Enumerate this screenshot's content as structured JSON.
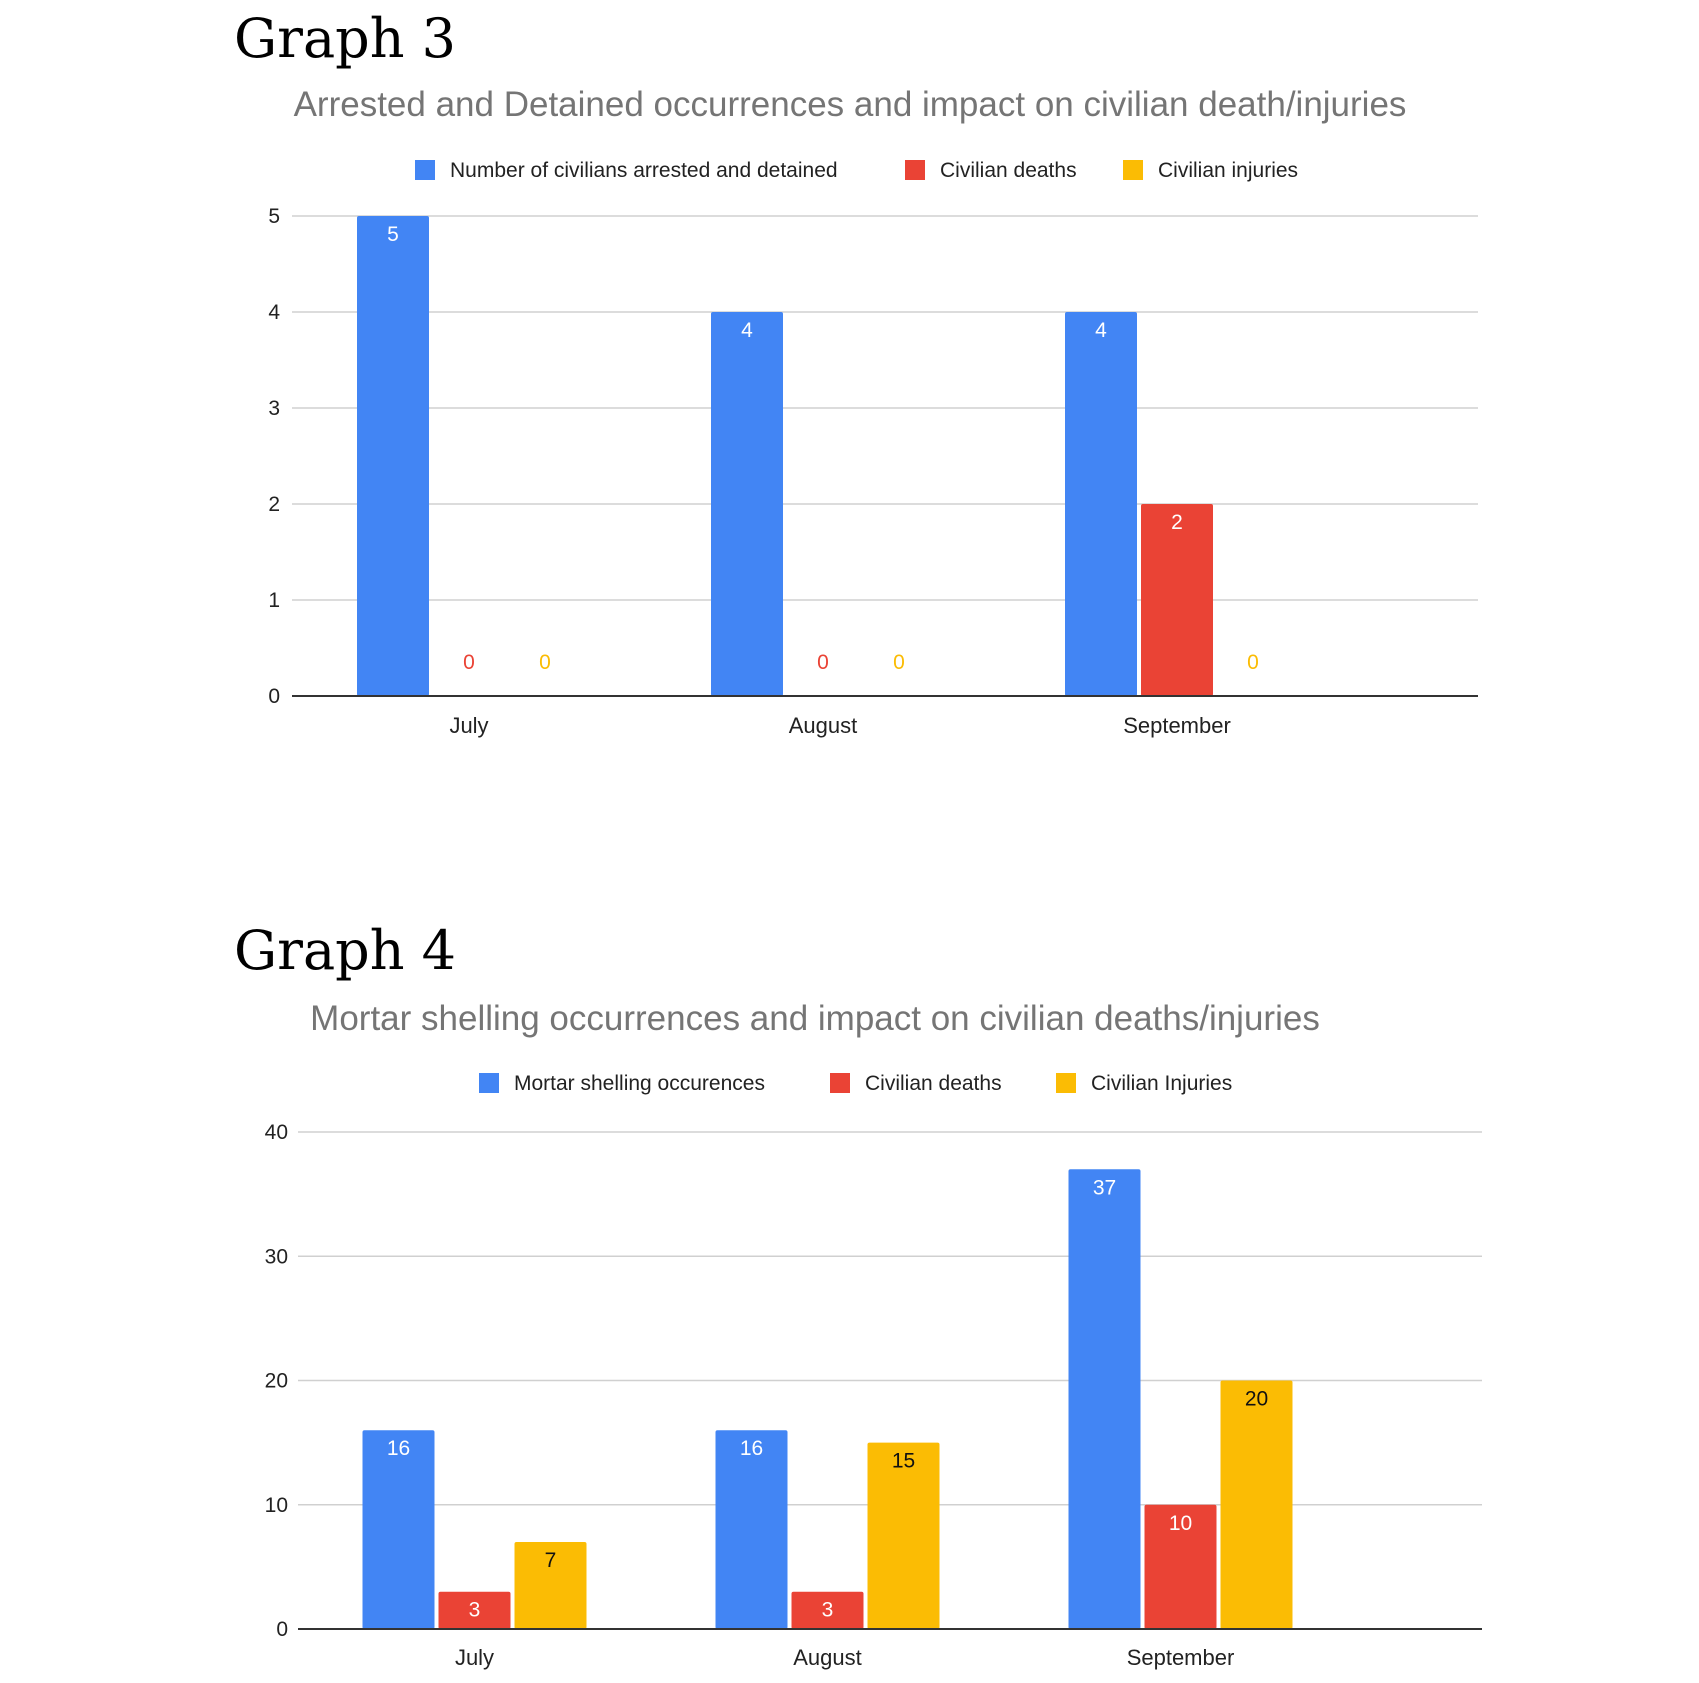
{
  "headings": [
    "Graph 3",
    "Graph 4"
  ],
  "chart_data": [
    {
      "type": "bar",
      "title": "Arrested and Detained occurrences and impact on civilian death/injuries",
      "categories": [
        "July",
        "August",
        "September"
      ],
      "series": [
        {
          "name": "Number of civilians arrested and detained",
          "color": "#4285F4",
          "values": [
            5,
            4,
            4
          ]
        },
        {
          "name": "Civilian deaths",
          "color": "#EA4335",
          "values": [
            0,
            0,
            2
          ]
        },
        {
          "name": "Civilian injuries",
          "color": "#FBBC04",
          "values": [
            0,
            0,
            0
          ]
        }
      ],
      "yticks": [
        0,
        1,
        2,
        3,
        4,
        5
      ],
      "ylim": [
        0,
        5
      ],
      "grid": true,
      "legend": "top",
      "data_labels": true
    },
    {
      "type": "bar",
      "title": "Mortar shelling occurrences and impact on civilian deaths/injuries",
      "categories": [
        "July",
        "August",
        "September"
      ],
      "series": [
        {
          "name": "Mortar shelling occurences",
          "color": "#4285F4",
          "values": [
            16,
            16,
            37
          ]
        },
        {
          "name": "Civilian deaths",
          "color": "#EA4335",
          "values": [
            3,
            3,
            10
          ]
        },
        {
          "name": "Civilian Injuries",
          "color": "#FBBC04",
          "values": [
            7,
            15,
            20
          ]
        }
      ],
      "yticks": [
        0,
        10,
        20,
        30,
        40
      ],
      "ylim": [
        0,
        40
      ],
      "grid": true,
      "legend": "top",
      "data_labels": true
    }
  ]
}
